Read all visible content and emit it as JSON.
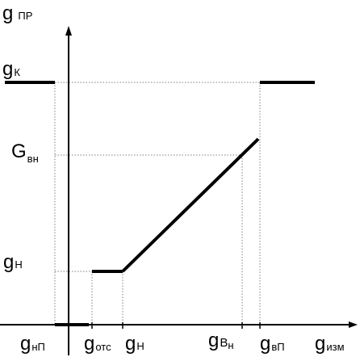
{
  "y_axis": {
    "main": "g",
    "sub": "ПР"
  },
  "x_axis": {
    "main": "g",
    "sub": "изм"
  },
  "y_labels": {
    "gk": {
      "main": "g",
      "sub": "К"
    },
    "gvn": {
      "main": "G",
      "sub": "вн"
    },
    "gn": {
      "main": "g",
      "sub": "Н"
    }
  },
  "x_labels": {
    "gnp": {
      "main": "g",
      "sub": "нП"
    },
    "gots": {
      "main": "g",
      "sub": "отс"
    },
    "gn": {
      "main": "g",
      "sub": "Н"
    },
    "gvn": {
      "main": "g",
      "sub": "В",
      "sub2": "н"
    },
    "gvp": {
      "main": "g",
      "sub": "вП"
    }
  },
  "colors": {
    "line": "#000000",
    "guide": "#808080"
  }
}
